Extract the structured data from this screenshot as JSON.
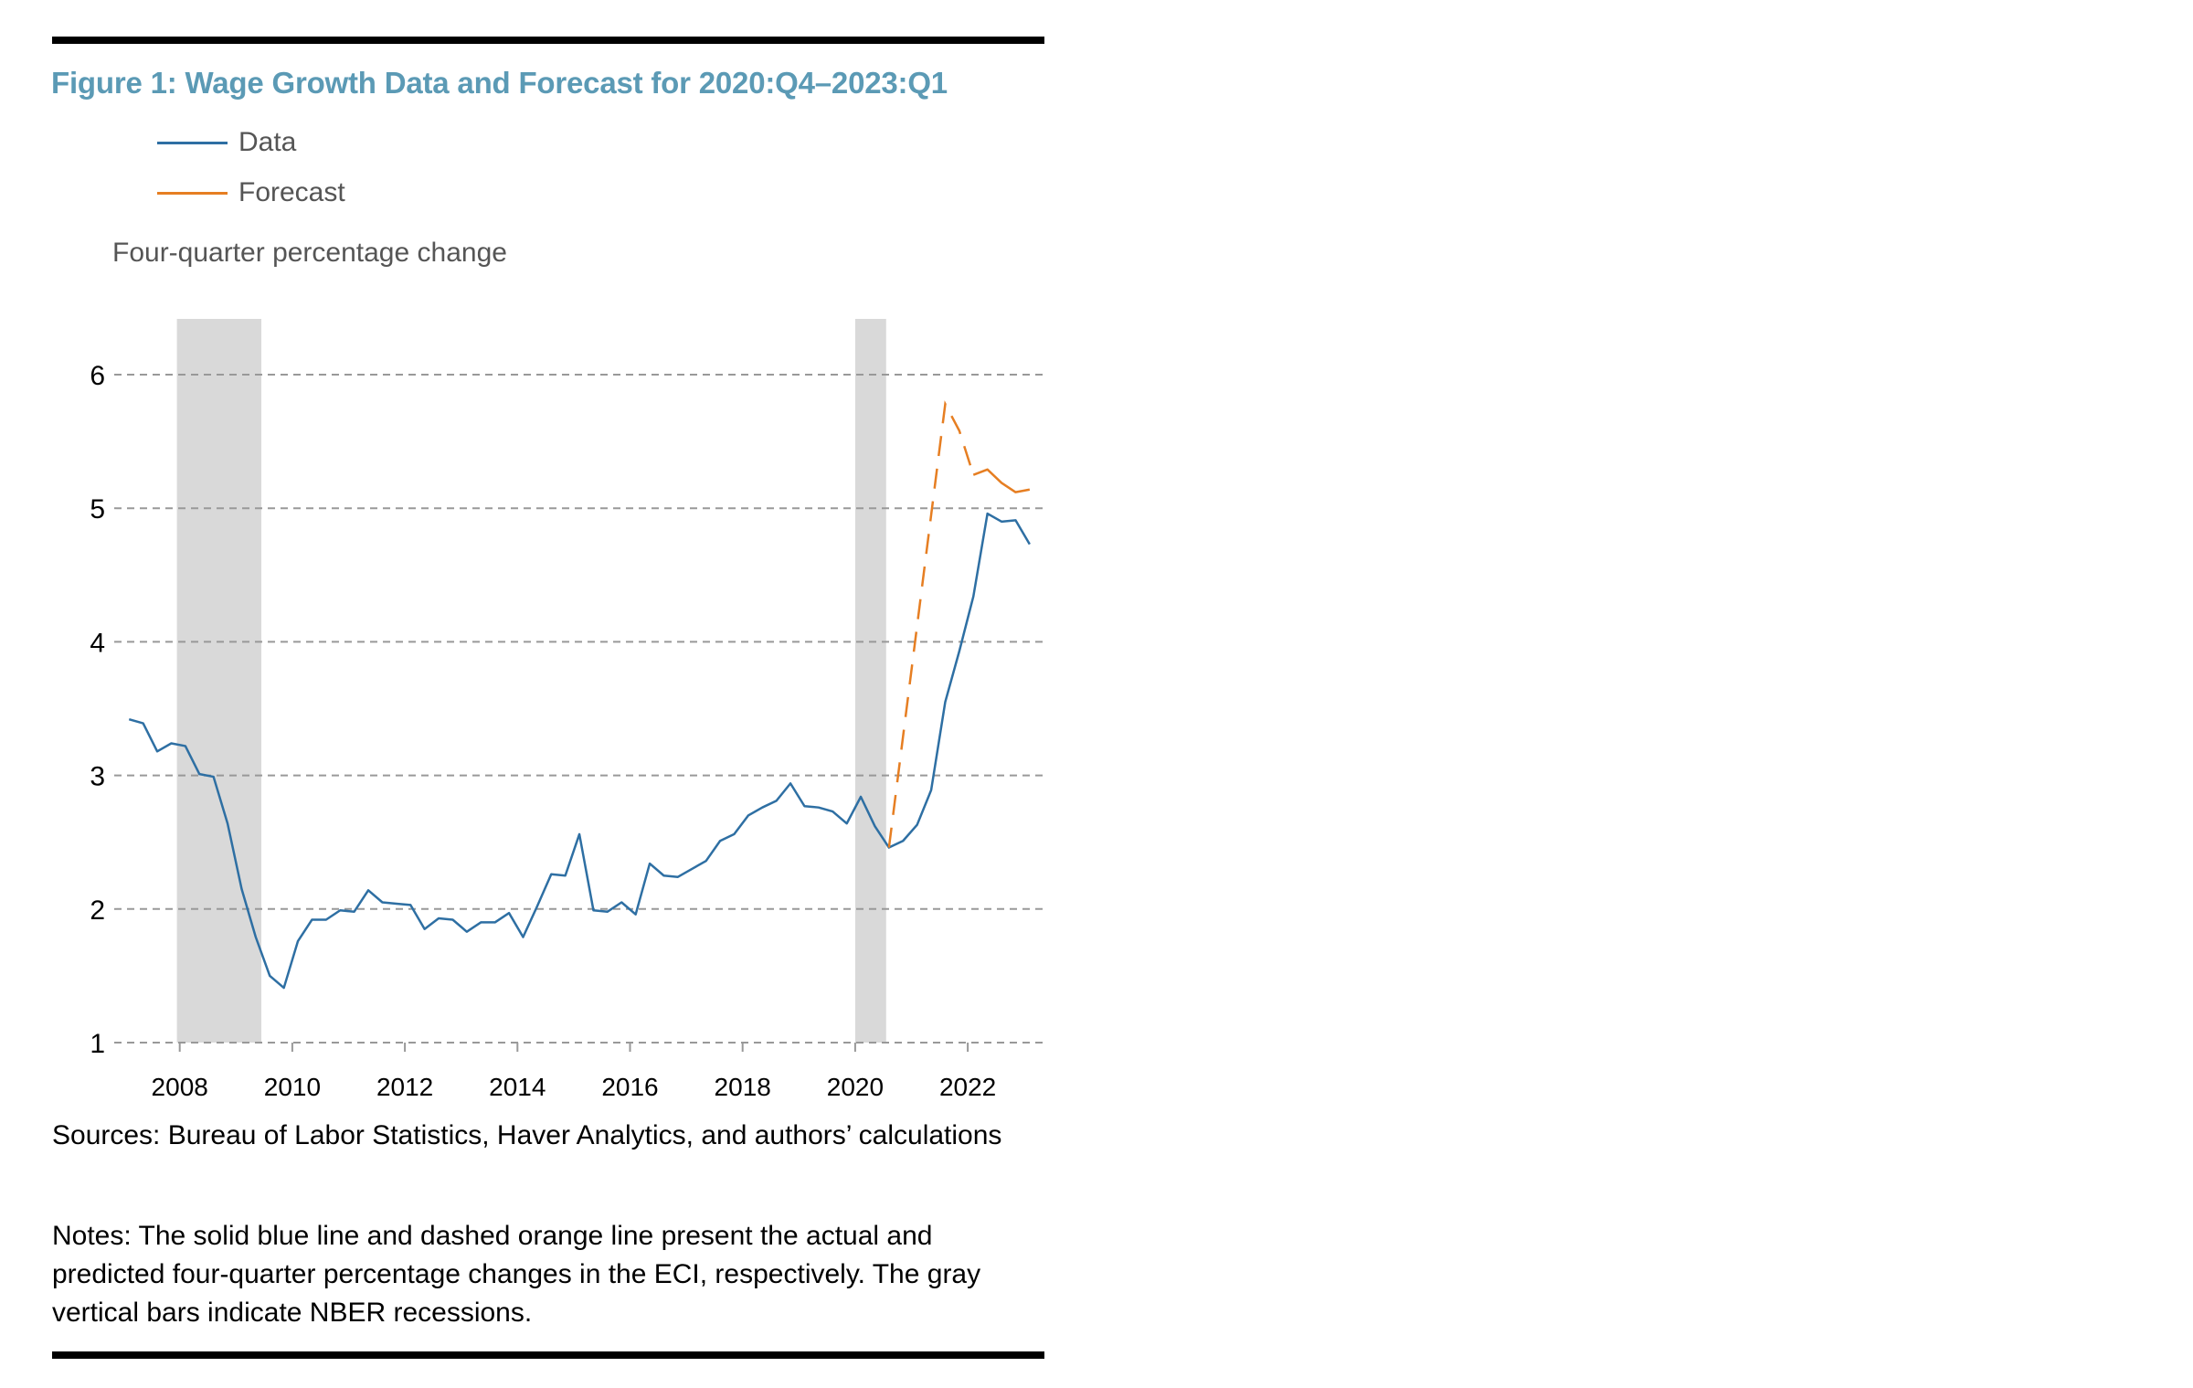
{
  "figure": {
    "title": "Figure 1: Wage Growth Data and Forecast for 2020:Q4–2023:Q1",
    "y_axis_title": "Four-quarter percentage change",
    "sources": "Sources: Bureau of Labor Statistics, Haver Analytics, and authors’ calculations",
    "notes": "Notes: The solid blue line and dashed orange line present the actual and predicted four-quarter percentage changes in the ECI, respectively. The gray vertical bars indicate NBER recessions."
  },
  "colors": {
    "title": "#5b9ab5",
    "data_line": "#2e6fa3",
    "forecast_line": "#e67e22",
    "recession_bar": "#d9d9d9",
    "gridline": "#999999",
    "text_gray": "#555555"
  },
  "chart_data": {
    "type": "line",
    "title": "Figure 1: Wage Growth Data and Forecast for 2020:Q4–2023:Q1",
    "xlabel": "",
    "ylabel": "Four-quarter percentage change",
    "ylim": [
      1,
      6.4
    ],
    "xlim": [
      2006.9,
      2023.3
    ],
    "yticks": [
      1,
      2,
      3,
      4,
      5,
      6
    ],
    "xticks": [
      2008,
      2010,
      2012,
      2014,
      2016,
      2018,
      2020,
      2022
    ],
    "grid": "horizontal dashed",
    "legend_position": "top-left",
    "recessions": [
      {
        "start": 2007.95,
        "end": 2009.45
      },
      {
        "start": 2020.0,
        "end": 2020.55
      }
    ],
    "series": [
      {
        "name": "Data",
        "style": "solid",
        "start_quarter": "2007:Q1",
        "x": [
          "2007:Q1",
          "2007:Q2",
          "2007:Q3",
          "2007:Q4",
          "2008:Q1",
          "2008:Q2",
          "2008:Q3",
          "2008:Q4",
          "2009:Q1",
          "2009:Q2",
          "2009:Q3",
          "2009:Q4",
          "2010:Q1",
          "2010:Q2",
          "2010:Q3",
          "2010:Q4",
          "2011:Q1",
          "2011:Q2",
          "2011:Q3",
          "2011:Q4",
          "2012:Q1",
          "2012:Q2",
          "2012:Q3",
          "2012:Q4",
          "2013:Q1",
          "2013:Q2",
          "2013:Q3",
          "2013:Q4",
          "2014:Q1",
          "2014:Q2",
          "2014:Q3",
          "2014:Q4",
          "2015:Q1",
          "2015:Q2",
          "2015:Q3",
          "2015:Q4",
          "2016:Q1",
          "2016:Q2",
          "2016:Q3",
          "2016:Q4",
          "2017:Q1",
          "2017:Q2",
          "2017:Q3",
          "2017:Q4",
          "2018:Q1",
          "2018:Q2",
          "2018:Q3",
          "2018:Q4",
          "2019:Q1",
          "2019:Q2",
          "2019:Q3",
          "2019:Q4",
          "2020:Q1",
          "2020:Q2",
          "2020:Q3",
          "2020:Q4",
          "2021:Q1",
          "2021:Q2",
          "2021:Q3",
          "2021:Q4",
          "2022:Q1",
          "2022:Q2",
          "2022:Q3",
          "2022:Q4",
          "2023:Q1"
        ],
        "values": [
          3.42,
          3.39,
          3.18,
          3.24,
          3.22,
          3.01,
          2.99,
          2.64,
          2.15,
          1.79,
          1.5,
          1.41,
          1.76,
          1.92,
          1.92,
          1.99,
          1.98,
          2.14,
          2.05,
          2.04,
          2.03,
          1.85,
          1.93,
          1.92,
          1.83,
          1.9,
          1.9,
          1.97,
          1.79,
          2.02,
          2.26,
          2.25,
          2.56,
          1.99,
          1.98,
          2.05,
          1.96,
          2.34,
          2.25,
          2.24,
          2.3,
          2.36,
          2.51,
          2.56,
          2.7,
          2.76,
          2.81,
          2.94,
          2.77,
          2.76,
          2.73,
          2.64,
          2.84,
          2.62,
          2.46,
          2.51,
          2.63,
          2.89,
          3.55,
          3.93,
          4.34,
          4.96,
          4.9,
          4.91,
          4.73
        ]
      },
      {
        "name": "Forecast",
        "style": "dashed",
        "x": [
          "2020:Q3",
          "2020:Q4",
          "2021:Q1",
          "2021:Q2",
          "2021:Q3",
          "2021:Q4",
          "2022:Q1",
          "2022:Q2",
          "2022:Q3",
          "2022:Q4",
          "2023:Q1"
        ],
        "values": [
          2.46,
          3.29,
          4.12,
          4.95,
          5.78,
          5.58,
          5.25,
          5.29,
          5.19,
          5.12,
          5.14
        ]
      }
    ]
  }
}
